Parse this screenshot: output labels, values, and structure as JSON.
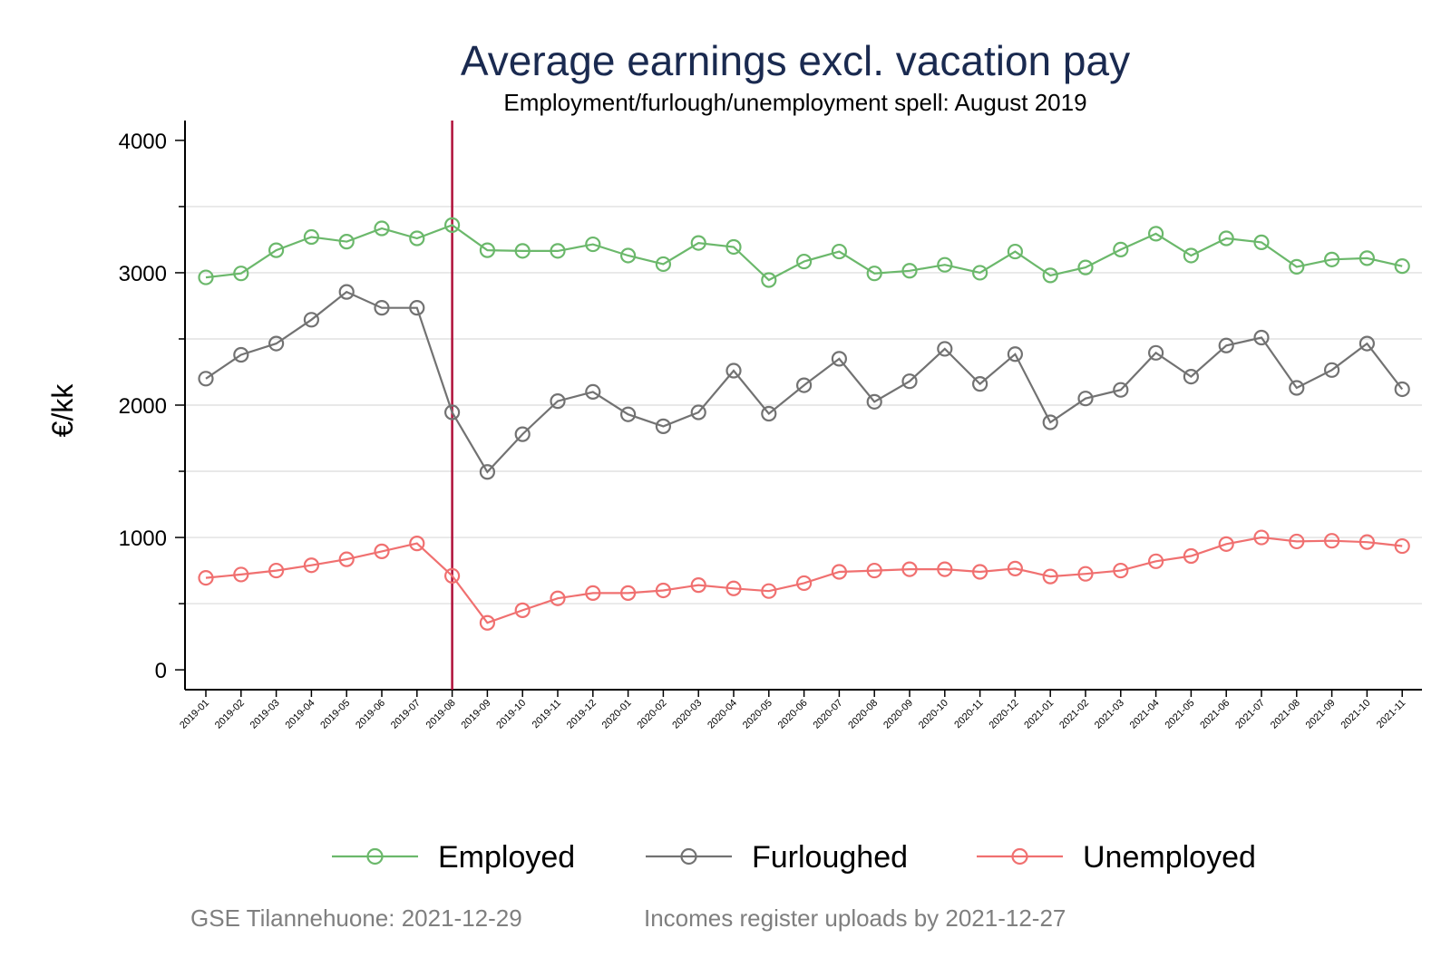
{
  "chart_data": {
    "type": "line",
    "title": "Average earnings excl. vacation pay",
    "subtitle": "Employment/furlough/unemployment spell: August 2019",
    "ylabel": "€/kk",
    "xlabel": "",
    "ylim": [
      -150,
      4150
    ],
    "yticks": [
      0,
      1000,
      2000,
      3000,
      4000
    ],
    "grid": true,
    "legend_position": "bottom",
    "vertical_line": "2019-08",
    "vertical_line_color": "#b0103a",
    "categories": [
      "2019-01",
      "2019-02",
      "2019-03",
      "2019-04",
      "2019-05",
      "2019-06",
      "2019-07",
      "2019-08",
      "2019-09",
      "2019-10",
      "2019-11",
      "2019-12",
      "2020-01",
      "2020-02",
      "2020-03",
      "2020-04",
      "2020-05",
      "2020-06",
      "2020-07",
      "2020-08",
      "2020-09",
      "2020-10",
      "2020-11",
      "2020-12",
      "2021-01",
      "2021-02",
      "2021-03",
      "2021-04",
      "2021-05",
      "2021-06",
      "2021-07",
      "2021-08",
      "2021-09",
      "2021-10",
      "2021-11"
    ],
    "series": [
      {
        "name": "Employed",
        "color": "#6bb86b",
        "values": [
          2965,
          2995,
          3170,
          3270,
          3235,
          3335,
          3260,
          3360,
          3170,
          3165,
          3165,
          3215,
          3130,
          3065,
          3225,
          3195,
          2945,
          3085,
          3160,
          2995,
          3015,
          3060,
          3000,
          3160,
          2980,
          3040,
          3175,
          3295,
          3130,
          3260,
          3230,
          3045,
          3100,
          3110,
          3050
        ]
      },
      {
        "name": "Furloughed",
        "color": "#727272",
        "values": [
          2200,
          2380,
          2465,
          2645,
          2855,
          2735,
          2735,
          1945,
          1495,
          1780,
          2030,
          2100,
          1930,
          1840,
          1945,
          2260,
          1935,
          2150,
          2350,
          2025,
          2180,
          2425,
          2160,
          2385,
          1870,
          2050,
          2115,
          2395,
          2215,
          2450,
          2510,
          2130,
          2265,
          2465,
          2120
        ]
      },
      {
        "name": "Unemployed",
        "color": "#f07070",
        "values": [
          695,
          720,
          750,
          790,
          835,
          895,
          955,
          710,
          355,
          450,
          540,
          580,
          580,
          600,
          640,
          615,
          595,
          655,
          740,
          750,
          760,
          760,
          740,
          765,
          705,
          725,
          750,
          820,
          860,
          950,
          1000,
          970,
          975,
          965,
          935
        ]
      }
    ]
  },
  "footer": {
    "source": "GSE Tilannehuone: 2021-12-29",
    "uploads": "Incomes register uploads by 2021-12-27"
  }
}
